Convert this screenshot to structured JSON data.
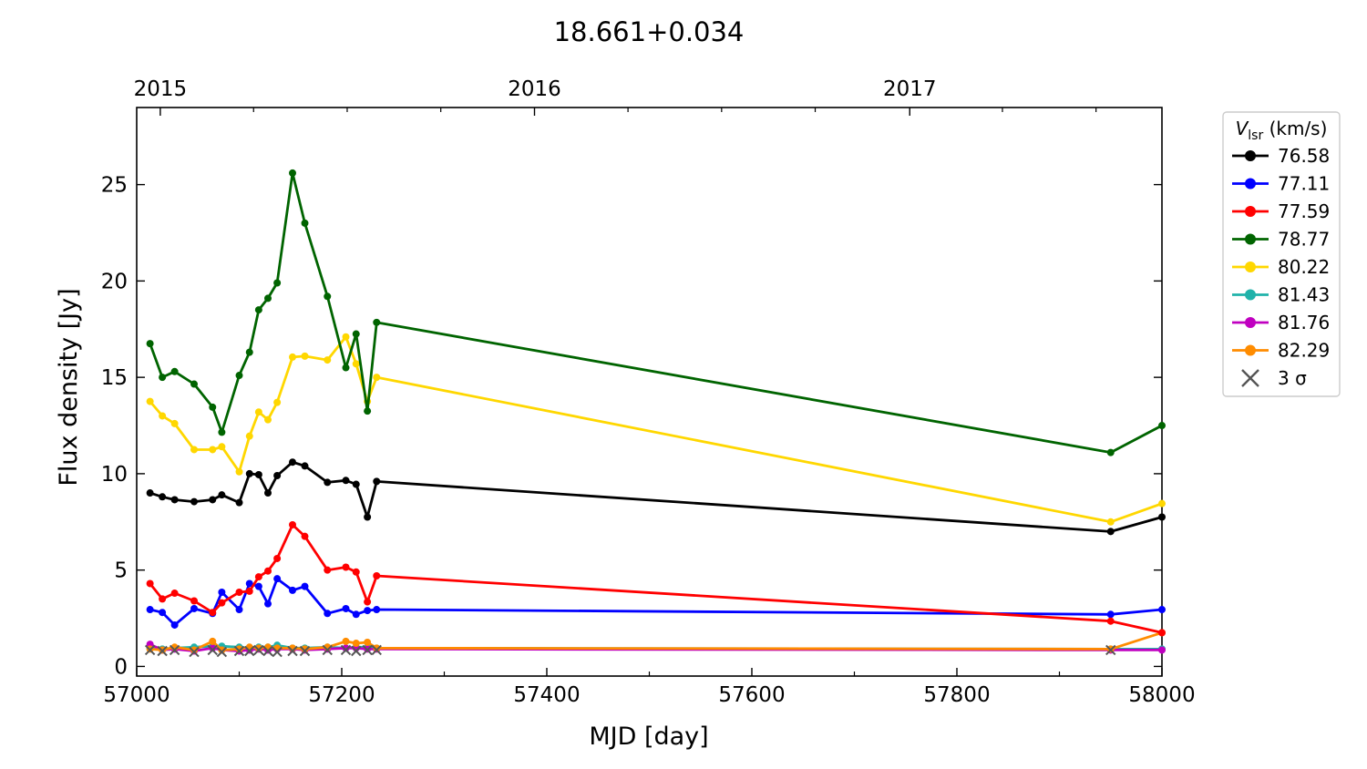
{
  "chart_data": {
    "type": "line",
    "title": "18.661+0.034",
    "xlabel": "MJD [day]",
    "ylabel": "Flux density [Jy]",
    "xlim": [
      57000,
      58000
    ],
    "ylim": [
      -0.5,
      29
    ],
    "x_ticks": [
      "57000",
      "57200",
      "57400",
      "57600",
      "57800",
      "58000"
    ],
    "y_ticks": [
      "0",
      "5",
      "10",
      "15",
      "20",
      "25"
    ],
    "top_axis_ticks": [
      {
        "label": "2015",
        "mjd": 57023
      },
      {
        "label": "2016",
        "mjd": 57388
      },
      {
        "label": "2017",
        "mjd": 57754
      }
    ],
    "legend": {
      "title_italic": "V",
      "title_sub": "lsr",
      "title_rest": " (km/s)",
      "position": "outside-right-top",
      "sigma_label": "3 σ"
    },
    "x": [
      57013,
      57025,
      57037,
      57056,
      57074,
      57083,
      57100,
      57110,
      57119,
      57128,
      57137,
      57152,
      57164,
      57186,
      57204,
      57214,
      57225,
      57234,
      57950,
      58000
    ],
    "series": [
      {
        "name": "76.58",
        "color": "#000000",
        "values": [
          9.0,
          8.8,
          8.65,
          8.55,
          8.65,
          8.9,
          8.5,
          10.0,
          9.95,
          9.0,
          9.9,
          10.6,
          10.4,
          9.55,
          9.65,
          9.45,
          7.75,
          9.6,
          7.0,
          7.75
        ]
      },
      {
        "name": "77.11",
        "color": "#0000ff",
        "values": [
          2.95,
          2.8,
          2.15,
          3.0,
          2.75,
          3.85,
          2.95,
          4.3,
          4.15,
          3.25,
          4.55,
          3.95,
          4.15,
          2.75,
          3.0,
          2.7,
          2.9,
          2.95,
          2.7,
          2.95
        ]
      },
      {
        "name": "77.59",
        "color": "#ff0000",
        "values": [
          4.3,
          3.5,
          3.8,
          3.4,
          2.8,
          3.3,
          3.85,
          3.9,
          4.65,
          4.95,
          5.6,
          7.35,
          6.75,
          5.0,
          5.15,
          4.9,
          3.35,
          4.7,
          2.35,
          1.75
        ]
      },
      {
        "name": "78.77",
        "color": "#006400",
        "values": [
          16.75,
          15.0,
          15.3,
          14.65,
          13.45,
          12.15,
          15.1,
          16.3,
          18.5,
          19.1,
          19.9,
          25.6,
          23.0,
          19.2,
          15.5,
          17.25,
          13.25,
          17.85,
          11.1,
          12.5
        ]
      },
      {
        "name": "80.22",
        "color": "#ffd700",
        "values": [
          13.75,
          13.0,
          12.6,
          11.25,
          11.25,
          11.4,
          10.1,
          11.95,
          13.2,
          12.8,
          13.7,
          16.05,
          16.1,
          15.9,
          17.1,
          15.7,
          13.75,
          15.0,
          7.5,
          8.45
        ]
      },
      {
        "name": "81.43",
        "color": "#20b2aa",
        "values": [
          0.95,
          0.9,
          0.95,
          1.0,
          1.05,
          1.05,
          1.0,
          0.95,
          1.0,
          1.0,
          1.1,
          0.95,
          0.95,
          1.0,
          0.95,
          1.0,
          1.0,
          0.95,
          0.9,
          0.9
        ]
      },
      {
        "name": "81.76",
        "color": "#c000c0",
        "values": [
          1.15,
          0.85,
          0.9,
          0.8,
          0.95,
          0.85,
          0.8,
          0.85,
          0.9,
          0.85,
          0.9,
          0.9,
          0.85,
          0.9,
          0.95,
          0.95,
          0.9,
          0.9,
          0.85,
          0.85
        ]
      },
      {
        "name": "82.29",
        "color": "#ff8c00",
        "values": [
          0.9,
          0.85,
          1.0,
          0.85,
          1.3,
          0.85,
          0.9,
          1.0,
          0.95,
          1.0,
          0.95,
          0.95,
          0.9,
          1.0,
          1.3,
          1.2,
          1.25,
          0.95,
          0.9,
          1.75
        ]
      }
    ],
    "sigma_markers": {
      "color": "#555555",
      "x": [
        57013,
        57025,
        57037,
        57056,
        57074,
        57083,
        57100,
        57110,
        57119,
        57128,
        57137,
        57152,
        57164,
        57186,
        57204,
        57214,
        57225,
        57234,
        57950
      ],
      "y": [
        0.85,
        0.8,
        0.85,
        0.75,
        0.85,
        0.75,
        0.8,
        0.8,
        0.85,
        0.8,
        0.75,
        0.8,
        0.8,
        0.85,
        0.85,
        0.8,
        0.85,
        0.85,
        0.85
      ]
    }
  }
}
